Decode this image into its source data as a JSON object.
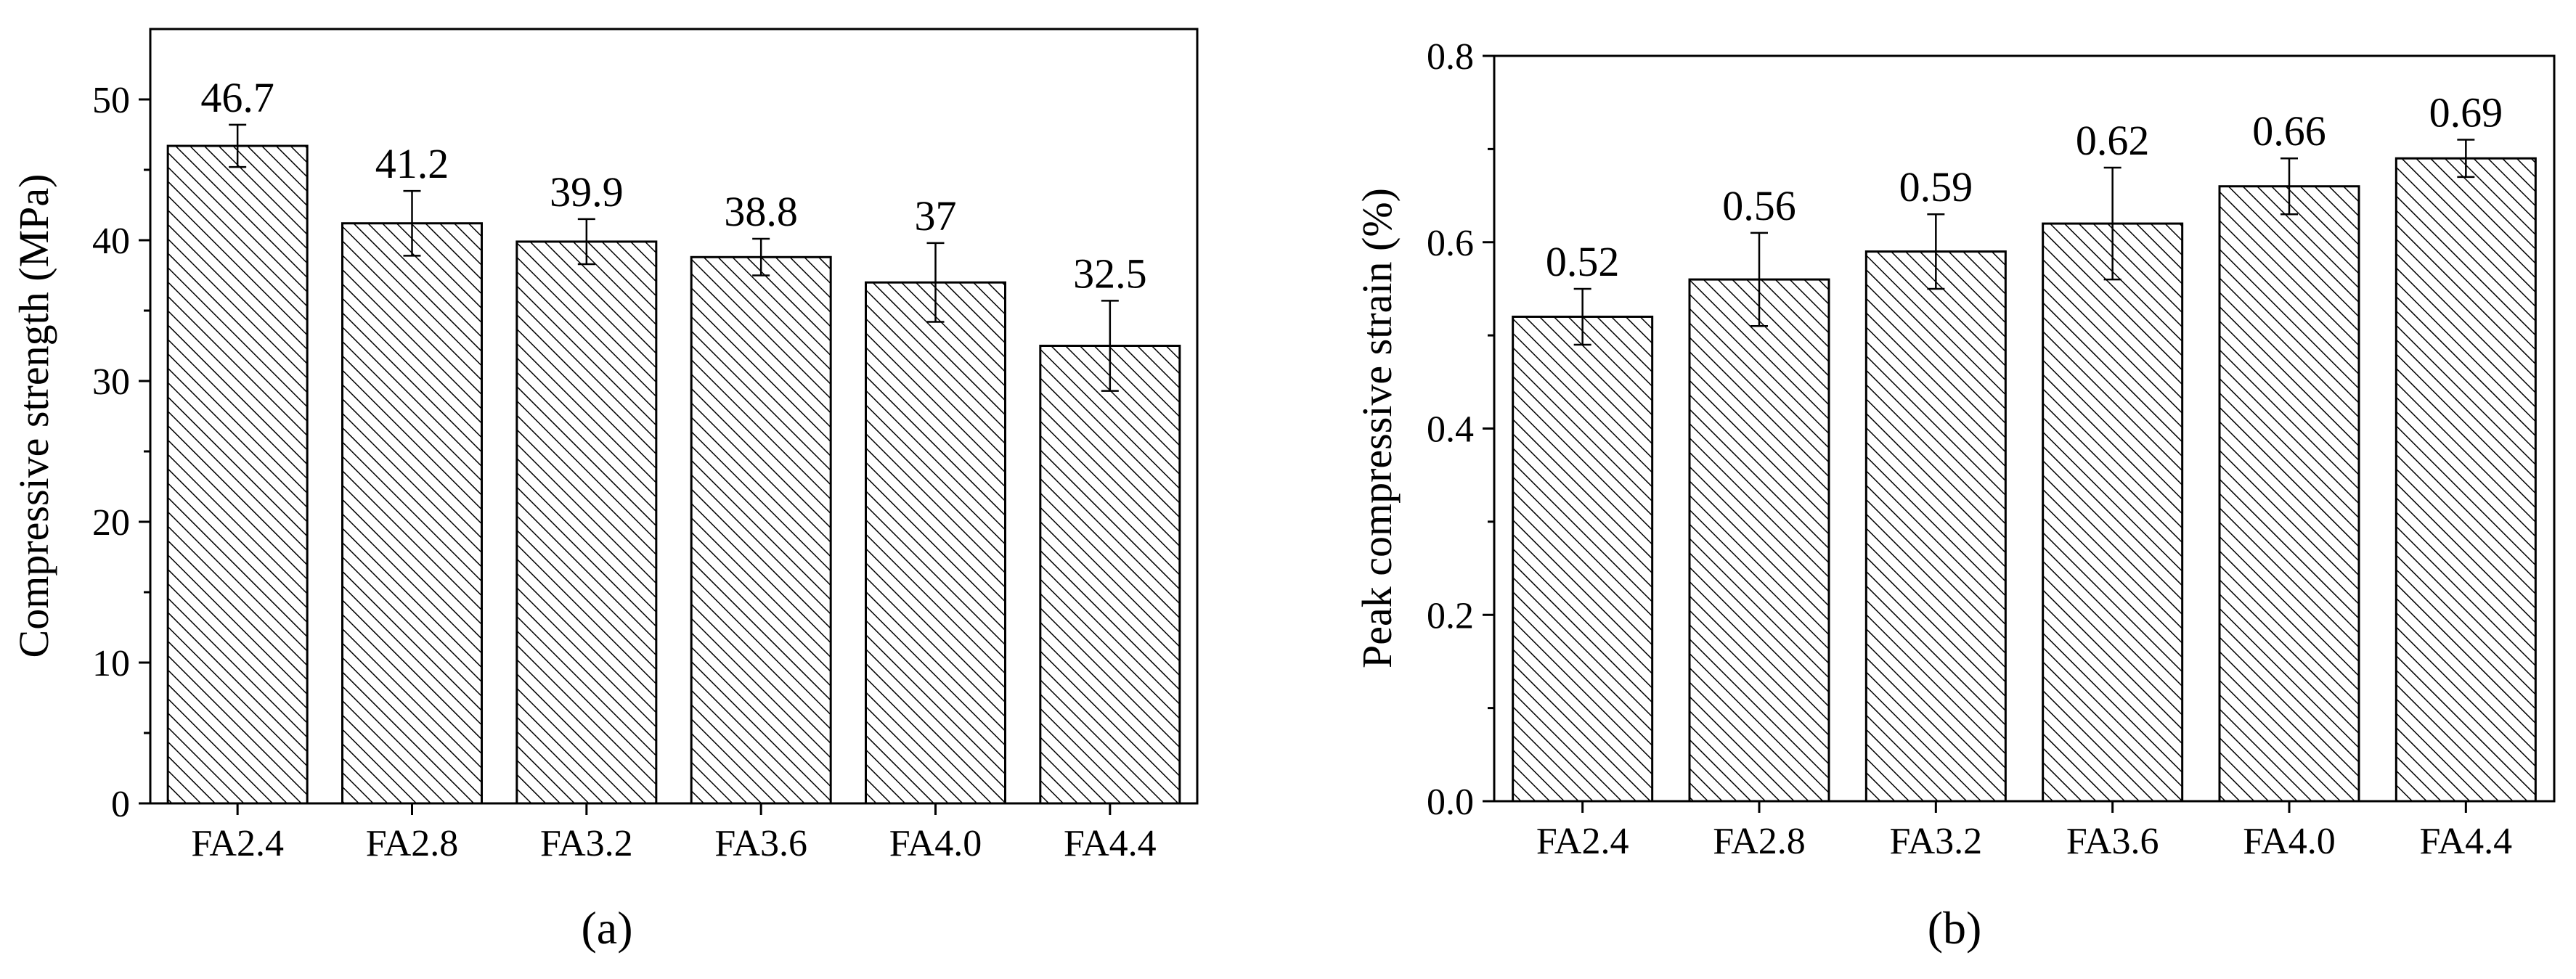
{
  "chart_data": [
    {
      "type": "bar",
      "panel_label": "(a)",
      "ylabel": "Compressive strength (MPa)",
      "xlabel": "",
      "categories": [
        "FA2.4",
        "FA2.8",
        "FA3.2",
        "FA3.6",
        "FA4.0",
        "FA4.4"
      ],
      "values": [
        46.7,
        41.2,
        39.9,
        38.8,
        37,
        32.5
      ],
      "value_labels": [
        "46.7",
        "41.2",
        "39.9",
        "38.8",
        "37",
        "32.5"
      ],
      "error": [
        1.5,
        2.3,
        1.6,
        1.3,
        2.8,
        3.2
      ],
      "ylim": [
        0,
        55
      ],
      "yticks": [
        0,
        10,
        20,
        30,
        40,
        50
      ],
      "ytick_labels": [
        "0",
        "10",
        "20",
        "30",
        "40",
        "50"
      ],
      "bar_fill": "diagonal hatch",
      "grid": false
    },
    {
      "type": "bar",
      "panel_label": "(b)",
      "ylabel": "Peak compressive strain (%)",
      "xlabel": "",
      "categories": [
        "FA2.4",
        "FA2.8",
        "FA3.2",
        "FA3.6",
        "FA4.0",
        "FA4.4"
      ],
      "values": [
        0.52,
        0.56,
        0.59,
        0.62,
        0.66,
        0.69
      ],
      "value_labels": [
        "0.52",
        "0.56",
        "0.59",
        "0.62",
        "0.66",
        "0.69"
      ],
      "error": [
        0.03,
        0.05,
        0.04,
        0.06,
        0.03,
        0.02
      ],
      "ylim": [
        0,
        0.8
      ],
      "yticks": [
        0,
        0.2,
        0.4,
        0.6,
        0.8
      ],
      "ytick_labels": [
        "0.0",
        "0.2",
        "0.4",
        "0.6",
        "0.8"
      ],
      "bar_fill": "diagonal hatch",
      "grid": false
    }
  ],
  "colors": {
    "bar_stroke": "#000000",
    "hatch": "#000000",
    "background": "#ffffff"
  }
}
